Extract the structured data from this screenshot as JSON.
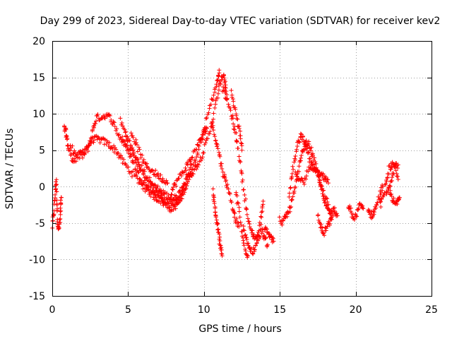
{
  "chart_data": {
    "type": "scatter",
    "title": "Day 299 of 2023, Sidereal Day-to-day VTEC variation (SDTVAR) for receiver kev2",
    "xlabel": "GPS time / hours",
    "ylabel": "SDTVAR / TECUs",
    "xlim": [
      0,
      25
    ],
    "ylim": [
      -15,
      20
    ],
    "xticks": [
      0,
      5,
      10,
      15,
      20,
      25
    ],
    "yticks": [
      -15,
      -10,
      -5,
      0,
      5,
      10,
      15,
      20
    ],
    "grid": true,
    "marker": "+",
    "series": [
      {
        "name": "kev2",
        "color": "#ff0000",
        "tracks": [
          [
            [
              0.0,
              -5.5
            ],
            [
              0.1,
              -3.5
            ],
            [
              0.2,
              -1.0
            ],
            [
              0.25,
              1.0
            ],
            [
              0.3,
              -2.0
            ],
            [
              0.35,
              -4.5
            ],
            [
              0.4,
              -6.0
            ],
            [
              0.5,
              -5.0
            ],
            [
              0.55,
              -3.0
            ],
            [
              0.6,
              -1.5
            ]
          ],
          [
            [
              0.8,
              8.0
            ],
            [
              0.9,
              7.5
            ],
            [
              1.0,
              6.0
            ],
            [
              1.1,
              5.0
            ],
            [
              1.3,
              4.0
            ],
            [
              1.5,
              3.5
            ],
            [
              1.8,
              4.5
            ],
            [
              2.1,
              5.0
            ],
            [
              2.4,
              5.8
            ],
            [
              2.7,
              6.5
            ],
            [
              3.0,
              6.5
            ],
            [
              3.3,
              6.3
            ],
            [
              3.6,
              6.0
            ],
            [
              3.9,
              5.5
            ],
            [
              4.2,
              5.0
            ],
            [
              4.5,
              4.0
            ],
            [
              4.8,
              3.0
            ],
            [
              5.2,
              2.0
            ],
            [
              5.6,
              1.0
            ],
            [
              6.0,
              0.0
            ],
            [
              6.4,
              -0.8
            ],
            [
              6.8,
              -1.5
            ],
            [
              7.2,
              -2.0
            ],
            [
              7.5,
              -2.5
            ],
            [
              7.8,
              -3.0
            ],
            [
              8.0,
              -2.8
            ],
            [
              8.2,
              -2.5
            ],
            [
              8.4,
              -2.0
            ],
            [
              8.6,
              -1.0
            ],
            [
              8.8,
              0.0
            ],
            [
              9.1,
              1.5
            ],
            [
              9.4,
              2.5
            ],
            [
              9.7,
              3.5
            ],
            [
              10.0,
              5.0
            ],
            [
              10.3,
              7.0
            ],
            [
              10.6,
              9.5
            ],
            [
              10.9,
              12.5
            ],
            [
              11.1,
              14.5
            ],
            [
              11.3,
              15.5
            ],
            [
              11.4,
              14.0
            ],
            [
              11.5,
              12.0
            ]
          ],
          [
            [
              1.2,
              5.5
            ],
            [
              1.5,
              4.5
            ],
            [
              1.8,
              4.0
            ],
            [
              2.2,
              4.5
            ],
            [
              2.5,
              6.0
            ],
            [
              2.7,
              8.0
            ],
            [
              2.9,
              9.5
            ],
            [
              3.2,
              9.5
            ],
            [
              3.5,
              9.8
            ],
            [
              3.8,
              9.5
            ],
            [
              4.1,
              8.5
            ],
            [
              4.4,
              7.0
            ],
            [
              4.7,
              6.0
            ],
            [
              5.0,
              5.0
            ],
            [
              5.3,
              3.5
            ],
            [
              5.6,
              2.0
            ],
            [
              5.9,
              1.0
            ],
            [
              6.2,
              0.0
            ],
            [
              6.5,
              -0.5
            ],
            [
              6.8,
              -1.0
            ],
            [
              7.1,
              -1.5
            ],
            [
              7.4,
              -2.0
            ],
            [
              7.7,
              -2.5
            ],
            [
              8.0,
              -2.0
            ],
            [
              8.3,
              -1.5
            ],
            [
              8.6,
              -0.5
            ],
            [
              8.9,
              1.0
            ],
            [
              9.2,
              2.5
            ],
            [
              9.5,
              4.0
            ],
            [
              9.8,
              6.0
            ],
            [
              10.1,
              8.5
            ],
            [
              10.4,
              11.0
            ],
            [
              10.7,
              13.0
            ],
            [
              10.9,
              14.5
            ],
            [
              11.0,
              16.0
            ]
          ],
          [
            [
              4.5,
              9.0
            ],
            [
              4.8,
              7.5
            ],
            [
              5.0,
              6.5
            ],
            [
              5.3,
              5.0
            ],
            [
              5.6,
              3.5
            ],
            [
              5.9,
              2.5
            ],
            [
              6.2,
              1.5
            ],
            [
              6.5,
              0.5
            ],
            [
              6.8,
              0.0
            ],
            [
              7.1,
              -0.5
            ],
            [
              7.4,
              -1.0
            ],
            [
              7.7,
              -1.5
            ],
            [
              8.0,
              -1.8
            ],
            [
              8.3,
              -1.2
            ],
            [
              8.6,
              0.0
            ],
            [
              8.9,
              1.5
            ],
            [
              9.2,
              3.0
            ]
          ],
          [
            [
              4.6,
              7.0
            ],
            [
              5.0,
              5.5
            ],
            [
              5.4,
              4.0
            ],
            [
              5.8,
              2.5
            ],
            [
              6.2,
              1.0
            ],
            [
              6.6,
              0.0
            ],
            [
              7.0,
              -0.8
            ],
            [
              7.4,
              -1.5
            ]
          ],
          [
            [
              5.2,
              7.5
            ],
            [
              5.5,
              6.0
            ],
            [
              5.8,
              4.5
            ],
            [
              6.1,
              3.0
            ],
            [
              6.4,
              2.5
            ],
            [
              6.7,
              2.0
            ],
            [
              7.0,
              1.5
            ],
            [
              7.3,
              1.0
            ],
            [
              7.6,
              0.5
            ]
          ],
          [
            [
              7.8,
              -1.0
            ],
            [
              8.0,
              0.0
            ],
            [
              8.3,
              1.0
            ],
            [
              8.6,
              2.0
            ],
            [
              8.9,
              3.0
            ],
            [
              9.2,
              4.0
            ],
            [
              9.5,
              5.5
            ],
            [
              9.8,
              6.5
            ],
            [
              10.0,
              7.5
            ],
            [
              10.2,
              8.0
            ]
          ],
          [
            [
              10.5,
              9.0
            ],
            [
              10.7,
              7.0
            ],
            [
              10.9,
              5.5
            ],
            [
              11.1,
              3.5
            ],
            [
              11.3,
              1.5
            ],
            [
              11.5,
              0.5
            ],
            [
              11.7,
              -1.0
            ],
            [
              11.9,
              -3.0
            ],
            [
              12.1,
              -4.5
            ],
            [
              12.3,
              -5.5
            ]
          ],
          [
            [
              11.2,
              13.5
            ],
            [
              11.5,
              12.0
            ],
            [
              11.8,
              10.0
            ],
            [
              12.0,
              8.0
            ],
            [
              12.2,
              6.0
            ],
            [
              12.4,
              3.0
            ],
            [
              12.6,
              0.0
            ],
            [
              12.8,
              -3.0
            ],
            [
              13.0,
              -5.5
            ],
            [
              13.2,
              -6.5
            ],
            [
              13.4,
              -7.0
            ],
            [
              13.6,
              -7.0
            ],
            [
              13.8,
              -6.0
            ],
            [
              14.0,
              -7.0
            ],
            [
              14.2,
              -8.0
            ]
          ],
          [
            [
              10.6,
              -0.5
            ],
            [
              10.7,
              -2.5
            ],
            [
              10.8,
              -4.0
            ],
            [
              10.9,
              -5.5
            ],
            [
              11.0,
              -7.0
            ],
            [
              11.1,
              -8.5
            ],
            [
              11.2,
              -9.5
            ]
          ],
          [
            [
              11.8,
              13.0
            ],
            [
              12.0,
              11.0
            ],
            [
              12.2,
              9.0
            ],
            [
              12.4,
              7.0
            ],
            [
              12.5,
              5.0
            ]
          ],
          [
            [
              12.6,
              -5.5
            ],
            [
              12.8,
              -7.0
            ],
            [
              13.0,
              -8.5
            ],
            [
              13.2,
              -9.0
            ],
            [
              13.4,
              -8.5
            ],
            [
              13.6,
              -6.5
            ],
            [
              13.8,
              -4.0
            ],
            [
              13.9,
              -2.0
            ]
          ],
          [
            [
              12.1,
              -1.0
            ],
            [
              12.3,
              -3.0
            ],
            [
              12.5,
              -6.5
            ],
            [
              12.7,
              -8.5
            ],
            [
              12.9,
              -9.5
            ]
          ],
          [
            [
              14.0,
              -5.5
            ],
            [
              14.2,
              -6.0
            ],
            [
              14.4,
              -7.0
            ],
            [
              14.6,
              -7.5
            ]
          ],
          [
            [
              15.0,
              -4.5
            ],
            [
              15.2,
              -5.0
            ],
            [
              15.4,
              -4.0
            ],
            [
              15.6,
              -3.5
            ],
            [
              15.8,
              -2.0
            ],
            [
              16.0,
              -0.5
            ],
            [
              16.2,
              2.0
            ],
            [
              16.4,
              4.0
            ],
            [
              16.6,
              5.5
            ],
            [
              16.8,
              6.0
            ],
            [
              17.0,
              5.5
            ],
            [
              17.2,
              4.0
            ],
            [
              17.4,
              2.5
            ],
            [
              17.6,
              1.0
            ],
            [
              17.8,
              -1.0
            ],
            [
              18.0,
              -2.5
            ],
            [
              18.2,
              -3.0
            ],
            [
              18.4,
              -3.5
            ],
            [
              18.6,
              -3.0
            ],
            [
              18.8,
              -4.0
            ]
          ],
          [
            [
              15.6,
              -1.0
            ],
            [
              15.8,
              1.5
            ],
            [
              16.0,
              4.0
            ],
            [
              16.2,
              6.0
            ],
            [
              16.4,
              7.0
            ],
            [
              16.6,
              6.5
            ],
            [
              16.8,
              5.0
            ],
            [
              17.0,
              3.5
            ],
            [
              17.2,
              2.5
            ],
            [
              17.4,
              2.0
            ],
            [
              17.6,
              1.5
            ],
            [
              17.8,
              1.5
            ],
            [
              18.0,
              1.0
            ],
            [
              18.2,
              0.5
            ]
          ],
          [
            [
              16.0,
              2.0
            ],
            [
              16.3,
              1.0
            ],
            [
              16.6,
              0.5
            ],
            [
              16.9,
              2.5
            ],
            [
              17.2,
              3.0
            ],
            [
              17.5,
              2.0
            ],
            [
              17.8,
              0.0
            ],
            [
              18.1,
              -2.0
            ],
            [
              18.4,
              -4.5
            ]
          ],
          [
            [
              17.5,
              -4.0
            ],
            [
              17.7,
              -5.5
            ],
            [
              17.9,
              -6.5
            ],
            [
              18.1,
              -5.5
            ],
            [
              18.3,
              -5.0
            ],
            [
              18.5,
              -4.0
            ]
          ],
          [
            [
              19.5,
              -2.5
            ],
            [
              19.7,
              -3.5
            ],
            [
              19.9,
              -4.5
            ],
            [
              20.1,
              -3.5
            ],
            [
              20.3,
              -2.5
            ],
            [
              20.5,
              -3.0
            ]
          ],
          [
            [
              20.8,
              -3.0
            ],
            [
              21.0,
              -4.0
            ],
            [
              21.2,
              -3.5
            ],
            [
              21.4,
              -2.5
            ],
            [
              21.6,
              -1.0
            ],
            [
              21.8,
              0.0
            ]
          ],
          [
            [
              21.6,
              -2.5
            ],
            [
              21.8,
              -1.5
            ],
            [
              22.0,
              0.5
            ],
            [
              22.2,
              2.5
            ],
            [
              22.4,
              3.0
            ],
            [
              22.6,
              2.5
            ],
            [
              22.8,
              1.0
            ]
          ],
          [
            [
              22.2,
              -0.5
            ],
            [
              22.4,
              -1.5
            ],
            [
              22.6,
              -2.5
            ],
            [
              22.8,
              -2.0
            ],
            [
              22.9,
              -1.5
            ]
          ],
          [
            [
              22.0,
              -1.0
            ],
            [
              22.2,
              0.0
            ],
            [
              22.4,
              1.5
            ],
            [
              22.6,
              3.0
            ],
            [
              22.8,
              3.0
            ]
          ]
        ]
      }
    ]
  }
}
